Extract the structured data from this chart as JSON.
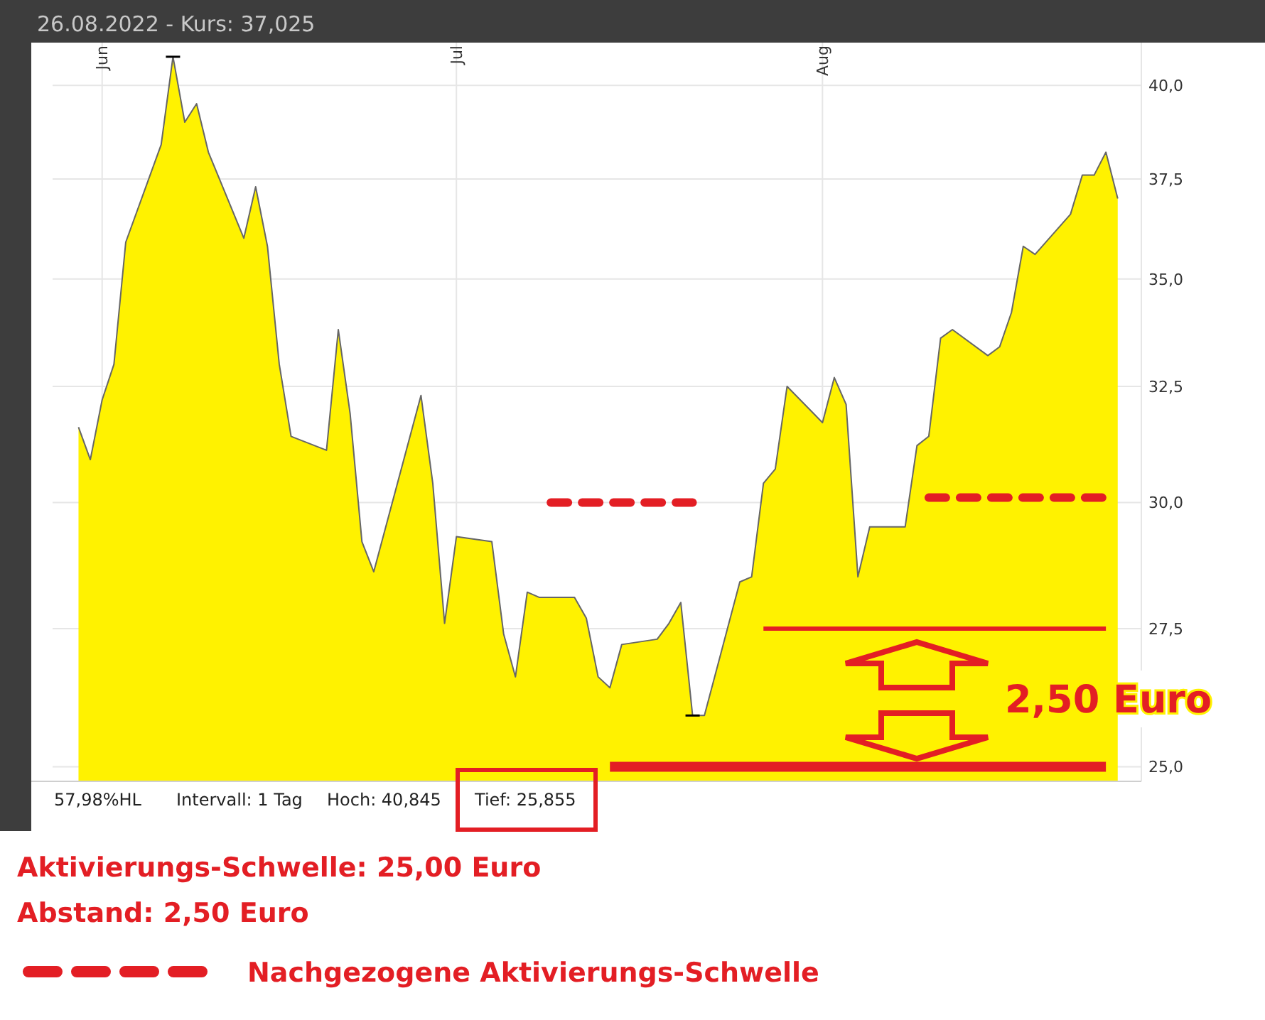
{
  "chart_data": {
    "type": "area",
    "title": "26.08.2022  -  Kurs: 37,025",
    "x": [
      "2022-05-30",
      "2022-05-31",
      "2022-06-01",
      "2022-06-02",
      "2022-06-03",
      "2022-06-06",
      "2022-06-07",
      "2022-06-08",
      "2022-06-09",
      "2022-06-10",
      "2022-06-13",
      "2022-06-14",
      "2022-06-15",
      "2022-06-16",
      "2022-06-17",
      "2022-06-20",
      "2022-06-21",
      "2022-06-22",
      "2022-06-23",
      "2022-06-24",
      "2022-06-28",
      "2022-06-29",
      "2022-06-30",
      "2022-07-01",
      "2022-07-04",
      "2022-07-05",
      "2022-07-06",
      "2022-07-07",
      "2022-07-08",
      "2022-07-11",
      "2022-07-12",
      "2022-07-13",
      "2022-07-14",
      "2022-07-15",
      "2022-07-18",
      "2022-07-19",
      "2022-07-20",
      "2022-07-21",
      "2022-07-22",
      "2022-07-25",
      "2022-07-26",
      "2022-07-27",
      "2022-07-28",
      "2022-07-29",
      "2022-08-01",
      "2022-08-02",
      "2022-08-03",
      "2022-08-04",
      "2022-08-05",
      "2022-08-08",
      "2022-08-09",
      "2022-08-10",
      "2022-08-11",
      "2022-08-12",
      "2022-08-15",
      "2022-08-16",
      "2022-08-17",
      "2022-08-18",
      "2022-08-19",
      "2022-08-22",
      "2022-08-23",
      "2022-08-24",
      "2022-08-25",
      "2022-08-26"
    ],
    "series": [
      {
        "color": "#fff200",
        "values": [
          31.6,
          30.9,
          32.2,
          33.0,
          35.9,
          38.4,
          40.8,
          39.0,
          39.5,
          38.2,
          36.0,
          37.3,
          35.8,
          33.0,
          31.4,
          31.1,
          33.8,
          31.9,
          29.2,
          28.6,
          32.3,
          30.4,
          27.6,
          29.3,
          29.2,
          27.4,
          26.6,
          28.2,
          28.1,
          28.1,
          27.7,
          26.6,
          26.4,
          27.2,
          27.3,
          27.6,
          28.0,
          25.9,
          25.9,
          28.4,
          28.5,
          30.4,
          30.7,
          32.5,
          31.7,
          32.7,
          32.1,
          28.5,
          29.5,
          29.5,
          31.2,
          31.4,
          33.6,
          33.8,
          33.2,
          33.4,
          34.2,
          35.8,
          35.6,
          36.6,
          37.6,
          37.6,
          38.2,
          37.0
        ]
      },
      {
        "type": "line",
        "color": "#e31e24",
        "line_style": "solid",
        "x": [
          "2022-07-14",
          "2022-08-25"
        ],
        "values": [
          25.0,
          25.0
        ]
      },
      {
        "type": "line",
        "color": "#e31e24",
        "line_style": "solid",
        "x": [
          "2022-07-27",
          "2022-08-25"
        ],
        "values": [
          27.5,
          27.5
        ]
      },
      {
        "type": "line",
        "name": "Nachgezogene Aktivierungs-Schwelle",
        "color": "#e31e24",
        "line_style": "dashed",
        "x": [
          "2022-07-09",
          "2022-07-21",
          "2022-07-30",
          "2022-08-10",
          "2022-08-25"
        ],
        "values": [
          30.0,
          30.0,
          null,
          30.1,
          30.1
        ]
      }
    ],
    "log": "y",
    "xlim": [
      "2022-05-26",
      "2022-08-28"
    ],
    "ylim": [
      24.75,
      41.2
    ],
    "xticks": [
      {
        "value": "2022-06-01",
        "label": "Jun"
      },
      {
        "value": "2022-07-01",
        "label": "Jul"
      },
      {
        "value": "2022-08-01",
        "label": "Aug"
      }
    ],
    "yticks": [
      {
        "value": 25,
        "label": "25,0"
      },
      {
        "value": 27.5,
        "label": "27,5"
      },
      {
        "value": 30,
        "label": "30,0"
      },
      {
        "value": 32.5,
        "label": "32,5"
      },
      {
        "value": 35,
        "label": "35,0"
      },
      {
        "value": 37.5,
        "label": "37,5"
      },
      {
        "value": 40,
        "label": "40,0"
      }
    ],
    "grid": true,
    "legend": "bottom left",
    "annotations": [
      "57,98%HL",
      "Intervall: 1 Tag",
      "Hoch: 40,845",
      "Tief: 25,855",
      "2,50 Euro",
      "Aktivierungs-Schwelle: 25,00 Euro",
      "Abstand: 2,50 Euro"
    ]
  }
}
